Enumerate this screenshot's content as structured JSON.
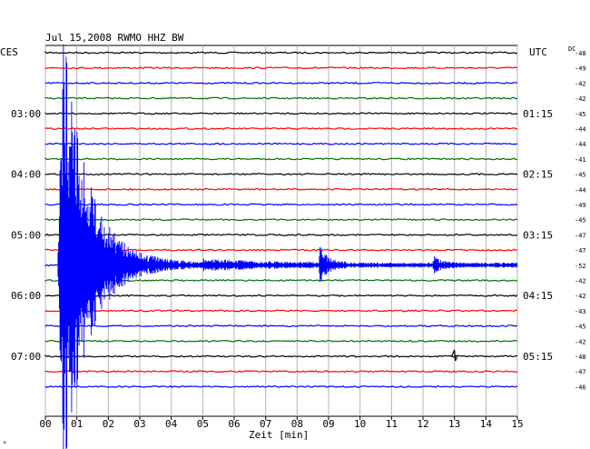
{
  "chart_data": {
    "type": "line",
    "title": "Jul 15,2008   RWMO HHZ BW",
    "left_unit": "CES",
    "right_unit": "UTC",
    "dc_label": "DC",
    "xlabel": "Zeit [min]",
    "x_ticks": [
      "00",
      "01",
      "02",
      "03",
      "04",
      "05",
      "06",
      "07",
      "08",
      "09",
      "10",
      "11",
      "12",
      "13",
      "14",
      "15"
    ],
    "xlim": [
      0,
      15
    ],
    "trace_count": 23,
    "trace_colors": [
      "#000000",
      "#ff0000",
      "#0000ff",
      "#007000"
    ],
    "left_time_labels": [
      {
        "trace": 4,
        "text": "03:00"
      },
      {
        "trace": 8,
        "text": "04:00"
      },
      {
        "trace": 12,
        "text": "05:00"
      },
      {
        "trace": 16,
        "text": "06:00"
      },
      {
        "trace": 20,
        "text": "07:00"
      }
    ],
    "right_time_labels": [
      {
        "trace": 4,
        "text": "01:15"
      },
      {
        "trace": 8,
        "text": "02:15"
      },
      {
        "trace": 12,
        "text": "03:15"
      },
      {
        "trace": 16,
        "text": "04:15"
      },
      {
        "trace": 20,
        "text": "05:15"
      }
    ],
    "dc_offsets": [
      "-48",
      "-49",
      "-42",
      "-42",
      "-45",
      "-44",
      "-44",
      "-41",
      "-45",
      "-44",
      "-49",
      "-45",
      "-47",
      "-47",
      "-52",
      "-42",
      "-42",
      "-43",
      "-45",
      "-42",
      "-48",
      "-47",
      "-46"
    ],
    "events": [
      {
        "trace": 14,
        "start_min": 0.4,
        "peak_min": 0.6,
        "description": "large earthquake, main energy spans many traces"
      },
      {
        "trace": 14,
        "start_min": 8.7,
        "peak_min": 8.8,
        "description": "aftershock"
      },
      {
        "trace": 14,
        "start_min": 12.3,
        "peak_min": 12.5,
        "description": "small aftershock"
      },
      {
        "trace": 20,
        "start_min": 12.9,
        "peak_min": 13.0,
        "description": "small spike"
      }
    ],
    "corner_mark": "*"
  }
}
